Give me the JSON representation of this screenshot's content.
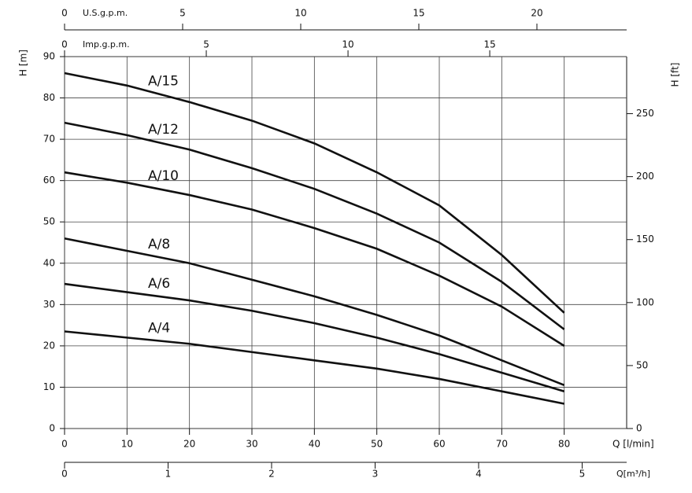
{
  "chart_data": {
    "type": "line",
    "x": [
      0,
      10,
      20,
      30,
      40,
      50,
      60,
      70,
      80
    ],
    "series": [
      {
        "name": "A/15",
        "color": "#111111",
        "values": [
          86,
          83,
          79,
          74.5,
          69,
          62,
          54,
          42,
          28
        ]
      },
      {
        "name": "A/12",
        "color": "#111111",
        "values": [
          74,
          71,
          67.5,
          63,
          58,
          52,
          45,
          35.5,
          24
        ]
      },
      {
        "name": "A/10",
        "color": "#111111",
        "values": [
          62,
          59.5,
          56.5,
          53,
          48.5,
          43.5,
          37,
          29.5,
          20
        ]
      },
      {
        "name": "A/8",
        "color": "#111111",
        "values": [
          46,
          43,
          40,
          36,
          32,
          27.5,
          22.5,
          16.5,
          10.5
        ]
      },
      {
        "name": "A/6",
        "color": "#111111",
        "values": [
          35,
          33,
          31,
          28.5,
          25.5,
          22,
          18,
          13.5,
          9
        ]
      },
      {
        "name": "A/4",
        "color": "#111111",
        "values": [
          23.5,
          22,
          20.5,
          18.5,
          16.5,
          14.5,
          12,
          9,
          6
        ]
      }
    ],
    "x_label": "Q [l/min]",
    "y_label": "H [m]",
    "y2_label": "H [ft]",
    "xlim": [
      0,
      90
    ],
    "xticks": [
      0,
      10,
      20,
      30,
      40,
      50,
      60,
      70,
      80
    ],
    "ylim": [
      0,
      90
    ],
    "yticks": [
      0,
      10,
      20,
      30,
      40,
      50,
      60,
      70,
      80,
      90
    ],
    "y2lim": [
      0,
      295.3
    ],
    "y2ticks": [
      0,
      50,
      100,
      150,
      200,
      250
    ],
    "grid": true,
    "extra_x_axes": [
      {
        "label": "U.S.g.p.m.",
        "lim": [
          0,
          23.8
        ],
        "ticks": [
          0,
          5,
          10,
          15,
          20
        ]
      },
      {
        "label": "Imp.g.p.m.",
        "lim": [
          0,
          19.83
        ],
        "ticks": [
          0,
          5,
          10,
          15
        ]
      },
      {
        "label": "Q[m³/h]",
        "lim": [
          0,
          5.43
        ],
        "ticks": [
          0,
          1,
          2,
          3,
          4,
          5
        ]
      }
    ]
  }
}
